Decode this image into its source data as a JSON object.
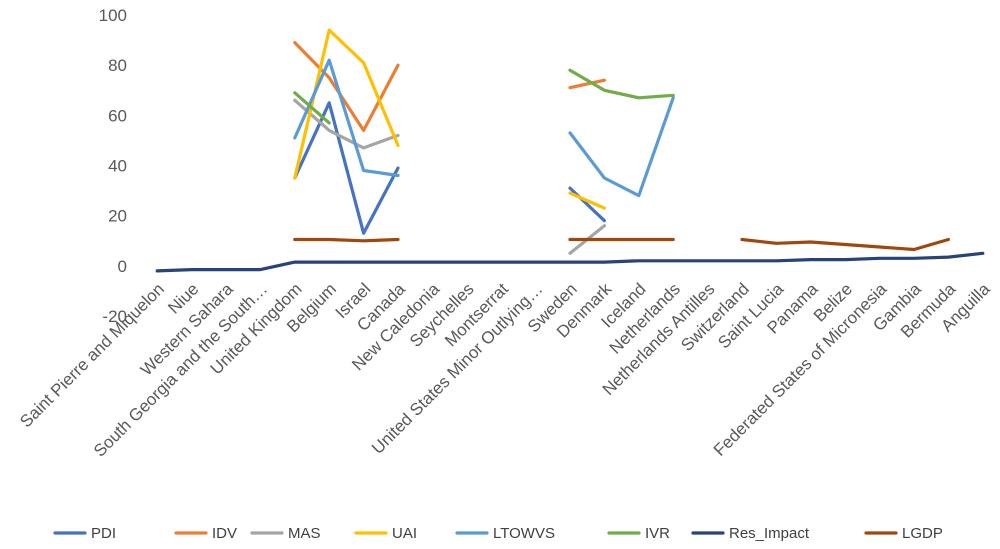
{
  "chart_data": {
    "type": "line",
    "title": "",
    "xlabel": "",
    "ylabel": "",
    "ylim": [
      -20,
      100
    ],
    "y_ticks": [
      "100",
      "80",
      "60",
      "40",
      "20",
      "0",
      "-20"
    ],
    "grid": false,
    "legend_position": "bottom",
    "categories": [
      "Saint Pierre and Miquelon",
      "Niue",
      "Western Sahara",
      "South Georgia and the South…",
      "United Kingdom",
      "Belgium",
      "Israel",
      "Canada",
      "New Caledonia",
      "Seychelles",
      "Montserrat",
      "United States Minor Outlying…",
      "Sweden",
      "Denmark",
      "Iceland",
      "Netherlands",
      "Netherlands Antilles",
      "Switzerland",
      "Saint Lucia",
      "Panama",
      "Belize",
      "Federated States of Micronesia",
      "Gambia",
      "Bermuda",
      "Anguilla"
    ],
    "series": [
      {
        "name": "PDI",
        "color": "#4472C4",
        "values": [
          null,
          null,
          null,
          null,
          35,
          65,
          13,
          39,
          null,
          null,
          null,
          null,
          31,
          18,
          null,
          null,
          null,
          null,
          null,
          null,
          null,
          null,
          null,
          null,
          null
        ]
      },
      {
        "name": "IDV",
        "color": "#ED7D31",
        "values": [
          null,
          null,
          null,
          null,
          89,
          75,
          54,
          80,
          null,
          null,
          null,
          null,
          71,
          74,
          null,
          null,
          null,
          null,
          null,
          null,
          null,
          null,
          null,
          null,
          null
        ]
      },
      {
        "name": "MAS",
        "color": "#A5A5A5",
        "values": [
          null,
          null,
          null,
          null,
          66,
          54,
          47,
          52,
          null,
          null,
          null,
          null,
          5,
          16,
          null,
          null,
          null,
          null,
          null,
          null,
          null,
          null,
          null,
          null,
          null
        ]
      },
      {
        "name": "UAI",
        "color": "#FFC000",
        "values": [
          null,
          null,
          null,
          null,
          35,
          94,
          81,
          48,
          null,
          null,
          null,
          null,
          29,
          23,
          null,
          null,
          null,
          null,
          null,
          null,
          null,
          null,
          null,
          null,
          null
        ]
      },
      {
        "name": "LTOWVS",
        "color": "#5B9BD5",
        "values": [
          null,
          null,
          null,
          null,
          51,
          82,
          38,
          36,
          null,
          null,
          null,
          null,
          53,
          35,
          28,
          67,
          null,
          null,
          null,
          null,
          null,
          null,
          null,
          null,
          null
        ]
      },
      {
        "name": "IVR",
        "color": "#70AD47",
        "values": [
          null,
          null,
          null,
          null,
          69,
          57,
          null,
          null,
          null,
          null,
          null,
          null,
          78,
          70,
          67,
          68,
          null,
          null,
          null,
          null,
          null,
          null,
          null,
          null,
          null
        ]
      },
      {
        "name": "Res_Impact",
        "color": "#264478",
        "values": [
          -2,
          -1.5,
          -1.5,
          -1.5,
          1.5,
          1.5,
          1.5,
          1.5,
          1.5,
          1.5,
          1.5,
          1.5,
          1.5,
          1.5,
          2,
          2,
          2,
          2,
          2,
          2.5,
          2.5,
          3,
          3,
          3.5,
          5
        ]
      },
      {
        "name": "LGDP",
        "color": "#9E480E",
        "values": [
          null,
          null,
          null,
          null,
          10.5,
          10.5,
          10,
          10.5,
          null,
          null,
          null,
          null,
          10.5,
          10.5,
          10.5,
          10.5,
          null,
          10.5,
          9,
          9.5,
          8.5,
          7.5,
          6.5,
          10.5,
          null
        ]
      }
    ],
    "legend": [
      {
        "label": "PDI",
        "color": "#4472C4"
      },
      {
        "label": "IDV",
        "color": "#ED7D31"
      },
      {
        "label": "MAS",
        "color": "#A5A5A5"
      },
      {
        "label": "UAI",
        "color": "#FFC000"
      },
      {
        "label": "LTOWVS",
        "color": "#5B9BD5"
      },
      {
        "label": "IVR",
        "color": "#70AD47"
      },
      {
        "label": "Res_Impact",
        "color": "#264478"
      },
      {
        "label": "LGDP",
        "color": "#9E480E"
      }
    ]
  }
}
